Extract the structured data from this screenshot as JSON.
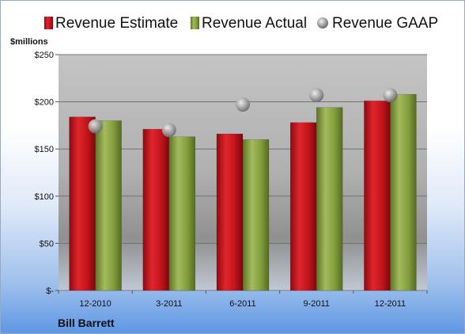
{
  "chart_data": {
    "type": "bar",
    "unit_label": "$millions",
    "company": "Bill Barrett",
    "categories": [
      "12-2010",
      "3-2011",
      "6-2011",
      "9-2011",
      "12-2011"
    ],
    "series": [
      {
        "name": "Revenue Estimate",
        "kind": "bar",
        "color": "#c0141b",
        "values": [
          184,
          171,
          166,
          178,
          201
        ]
      },
      {
        "name": "Revenue Actual",
        "kind": "bar",
        "color": "#7f9a3a",
        "values": [
          180,
          163,
          160,
          194,
          208
        ]
      },
      {
        "name": "Revenue GAAP",
        "kind": "marker",
        "color": "#a0a0a0",
        "values": [
          174,
          170,
          197,
          207,
          207
        ]
      }
    ],
    "y_ticks": [
      "$-",
      "$50",
      "$100",
      "$150",
      "$200",
      "$250"
    ],
    "ylim": [
      0,
      250
    ],
    "grid": true,
    "legend_position": "top"
  }
}
